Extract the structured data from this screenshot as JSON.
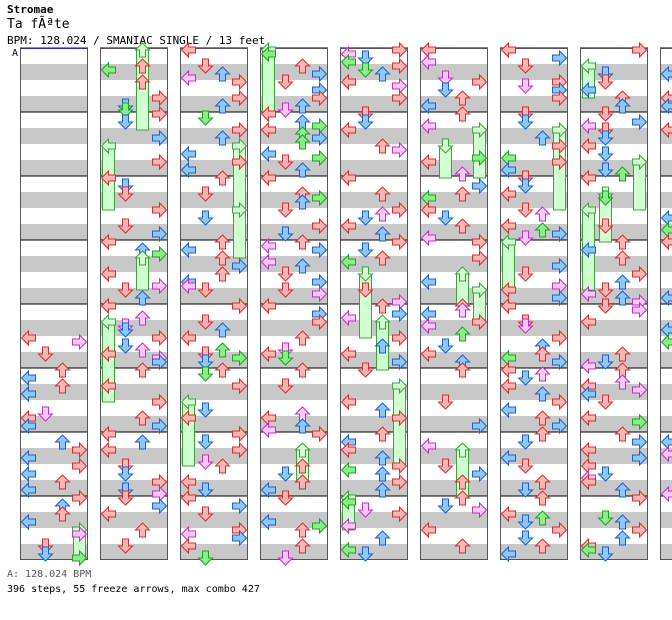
{
  "song": {
    "artist": "Stromae",
    "title": "Ta fÃªte",
    "info": "BPM: 128.024 / SMANIAC SINGLE / 13 feet"
  },
  "bpm_marker": "A",
  "footer": {
    "bpm_line": "A: 128.024 BPM",
    "stats_line": "396 steps, 55 freeze arrows, max combo 427"
  },
  "colors": {
    "stripe": "#c8c8c8",
    "border": "#555555",
    "quarter_fill": "#ffb4b4",
    "quarter_stroke": "#d03030",
    "eighth_fill": "#8cc8ff",
    "eighth_stroke": "#2060c0",
    "sixteenth_fill": "#ffc8ff",
    "sixteenth_stroke": "#c030c0",
    "green_fill": "#88ee88",
    "green_stroke": "#20a020",
    "freeze_fill": "#d0ffd0",
    "freeze_stroke": "#40a040"
  },
  "chart_data": {
    "type": "step_chart",
    "columns": 10,
    "measures_per_column": 8,
    "lanes": [
      "left",
      "down",
      "up",
      "right"
    ],
    "notes": []
  }
}
